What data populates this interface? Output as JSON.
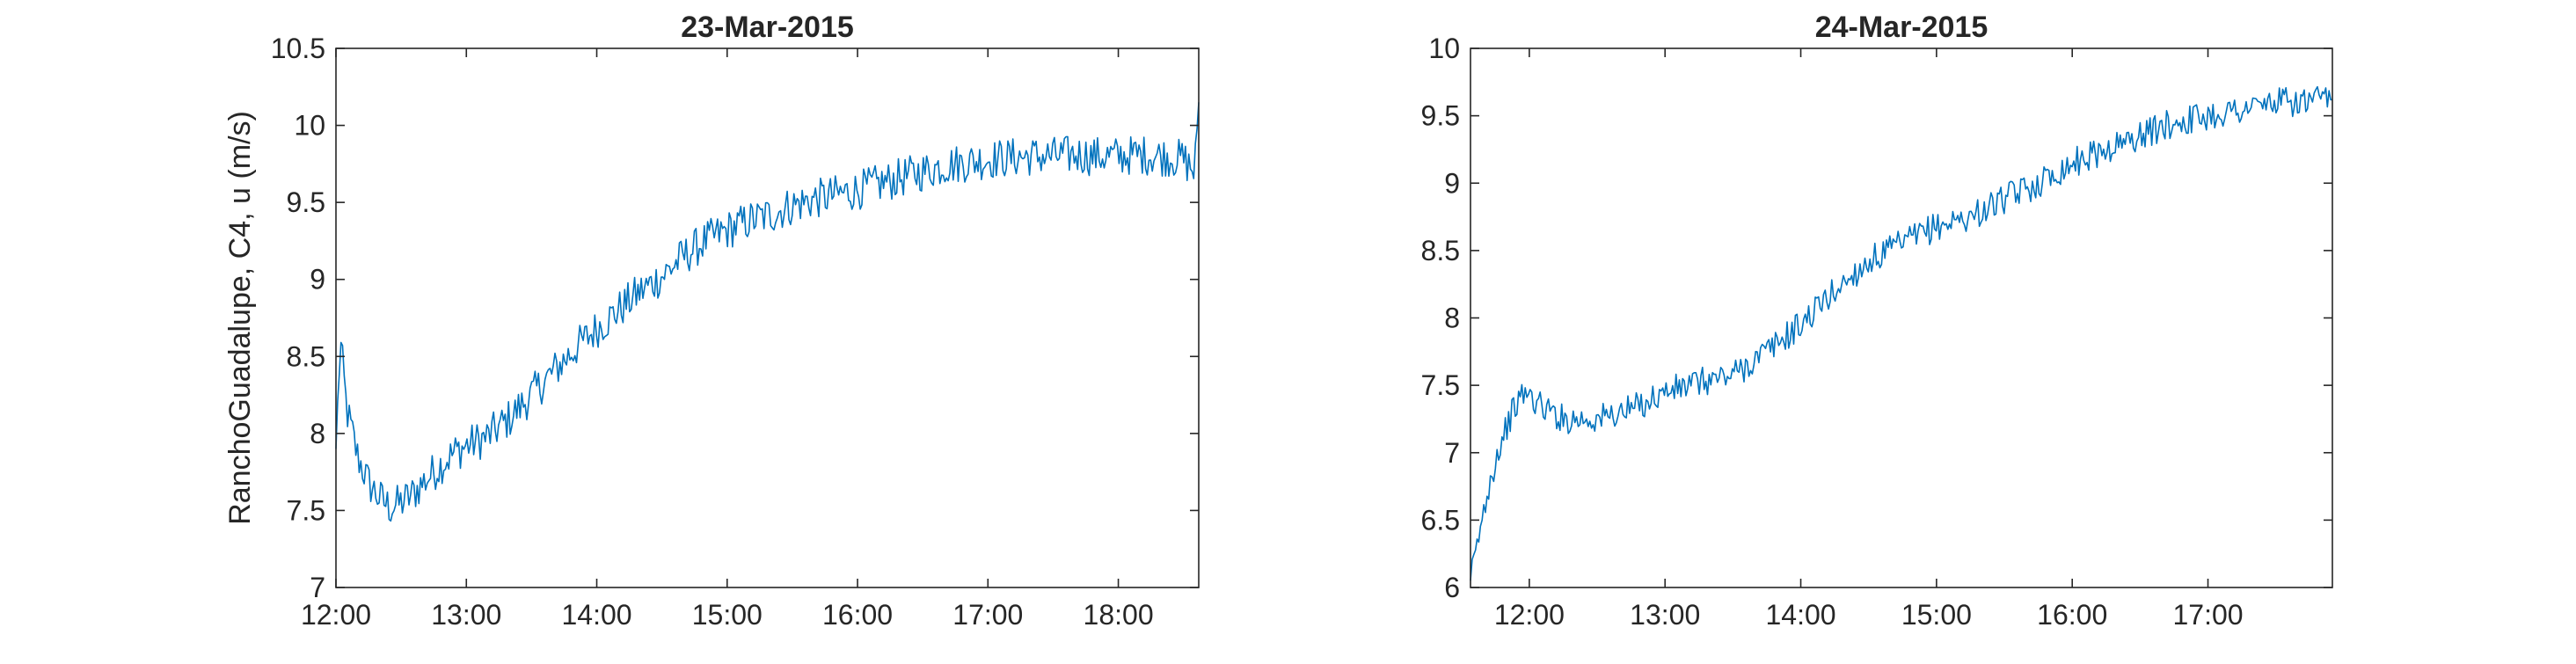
{
  "colors": {
    "series": "#0072BD",
    "axes": "#262626",
    "background": "#ffffff"
  },
  "chart_data": [
    {
      "type": "line",
      "title": "23-Mar-2015",
      "xlabel": "",
      "ylabel": "RanchoGuadalupe, C4, u (m/s)",
      "xlim": [
        "12:00",
        "18:37"
      ],
      "ylim": [
        7,
        10.5
      ],
      "xticks": [
        "12:00",
        "13:00",
        "14:00",
        "15:00",
        "16:00",
        "17:00",
        "18:00"
      ],
      "yticks": [
        "7",
        "7.5",
        "8",
        "8.5",
        "9",
        "9.5",
        "10",
        "10.5"
      ],
      "grid": false,
      "series": [
        {
          "x": [
            "12:00",
            "12:02",
            "12:05",
            "12:10",
            "12:15",
            "12:20",
            "12:25",
            "12:30",
            "12:35",
            "12:40",
            "12:45",
            "12:50",
            "12:55",
            "13:00",
            "13:10",
            "13:20",
            "13:30",
            "13:40",
            "13:50",
            "14:00",
            "14:10",
            "14:20",
            "14:30",
            "14:40",
            "14:50",
            "15:00",
            "15:10",
            "15:20",
            "15:30",
            "15:40",
            "15:50",
            "16:00",
            "16:10",
            "16:20",
            "16:30",
            "16:40",
            "16:50",
            "17:00",
            "17:10",
            "17:20",
            "17:30",
            "17:40",
            "17:50",
            "18:00",
            "18:10",
            "18:20",
            "18:30",
            "18:35",
            "18:37"
          ],
          "values": [
            7.9,
            8.6,
            8.15,
            7.85,
            7.68,
            7.58,
            7.52,
            7.55,
            7.6,
            7.68,
            7.75,
            7.82,
            7.88,
            7.92,
            7.98,
            8.1,
            8.25,
            8.4,
            8.55,
            8.68,
            8.8,
            8.92,
            9.02,
            9.15,
            9.25,
            9.32,
            9.38,
            9.42,
            9.48,
            9.52,
            9.55,
            9.58,
            9.62,
            9.66,
            9.7,
            9.74,
            9.76,
            9.78,
            9.79,
            9.8,
            9.8,
            9.81,
            9.8,
            9.8,
            9.81,
            9.8,
            9.78,
            9.7,
            10.15
          ]
        }
      ]
    },
    {
      "type": "line",
      "title": "24-Mar-2015",
      "xlabel": "",
      "ylabel": "",
      "xlim": [
        "11:34",
        "17:55"
      ],
      "ylim": [
        6,
        10
      ],
      "xticks": [
        "12:00",
        "13:00",
        "14:00",
        "15:00",
        "16:00",
        "17:00"
      ],
      "yticks": [
        "6",
        "6.5",
        "7",
        "7.5",
        "8",
        "8.5",
        "9",
        "9.5",
        "10"
      ],
      "grid": false,
      "series": [
        {
          "x": [
            "11:34",
            "11:38",
            "11:42",
            "11:46",
            "11:50",
            "11:54",
            "11:58",
            "12:05",
            "12:15",
            "12:30",
            "12:45",
            "13:00",
            "13:15",
            "13:30",
            "13:45",
            "14:00",
            "14:15",
            "14:30",
            "14:45",
            "15:00",
            "15:15",
            "15:30",
            "15:45",
            "16:00",
            "16:15",
            "16:30",
            "16:45",
            "17:00",
            "17:15",
            "17:30",
            "17:45",
            "17:55"
          ],
          "values": [
            6.05,
            6.4,
            6.75,
            7.0,
            7.2,
            7.35,
            7.45,
            7.35,
            7.25,
            7.25,
            7.32,
            7.45,
            7.52,
            7.58,
            7.75,
            7.95,
            8.2,
            8.42,
            8.55,
            8.68,
            8.75,
            8.88,
            9.0,
            9.15,
            9.25,
            9.35,
            9.45,
            9.5,
            9.55,
            9.6,
            9.6,
            9.62
          ]
        }
      ]
    }
  ]
}
